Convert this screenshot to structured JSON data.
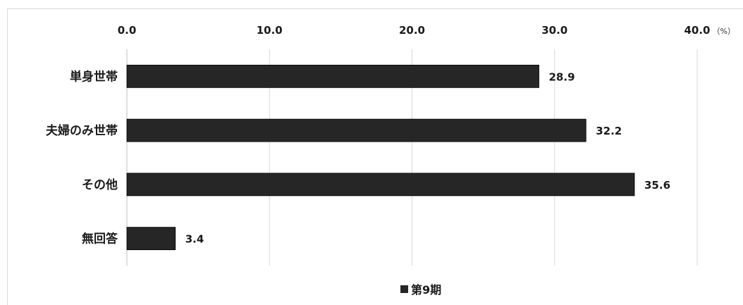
{
  "colors": {
    "bar": "#262626",
    "grid": "#d9d9d9",
    "text": "#1a1a1a"
  },
  "chart_data": {
    "type": "bar",
    "orientation": "horizontal",
    "categories": [
      "単身世帯",
      "夫婦のみ世帯",
      "その他",
      "無回答"
    ],
    "series": [
      {
        "name": "第9期",
        "values": [
          28.9,
          32.2,
          35.6,
          3.4
        ]
      }
    ],
    "xlim": [
      0,
      40
    ],
    "xticks": [
      "0.0",
      "10.0",
      "20.0",
      "30.0",
      "40.0"
    ],
    "unit": "（%）",
    "grid": true,
    "legend": {
      "position": "bottom",
      "marker": "■",
      "label": "第9期"
    }
  }
}
